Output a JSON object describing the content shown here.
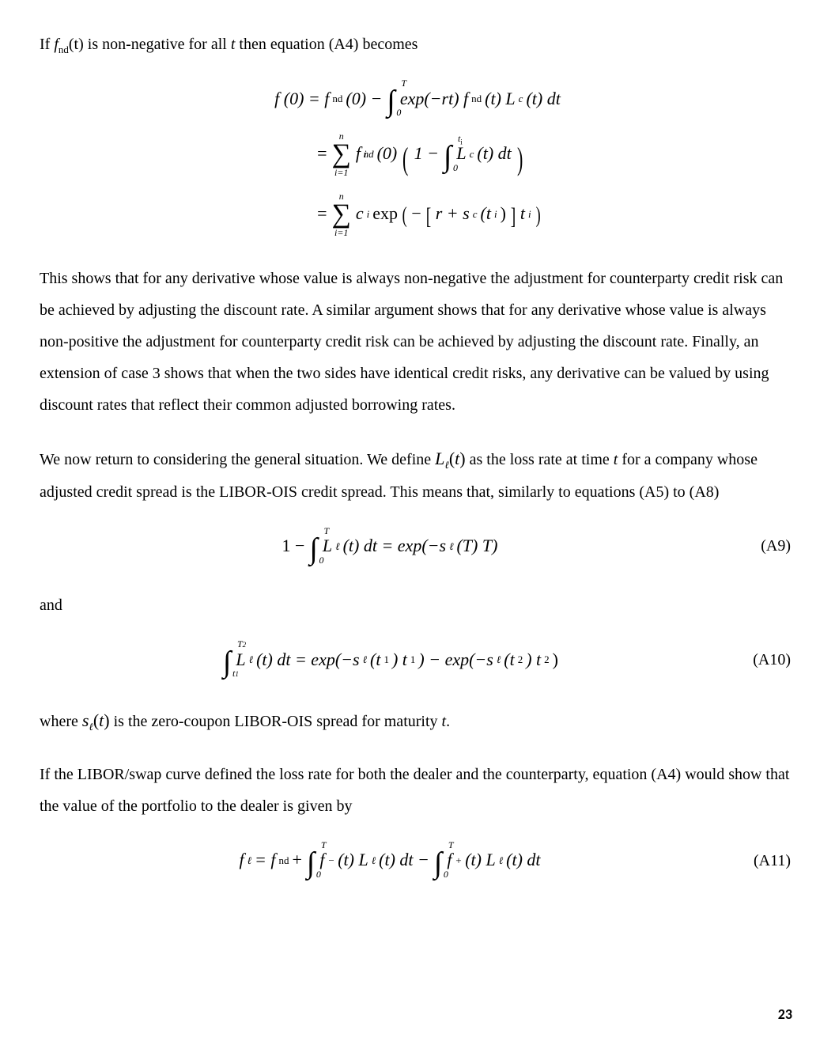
{
  "paragraphs": {
    "p1_pre": "If ",
    "p1_fnd": "f",
    "p1_fnd_sub": "nd",
    "p1_fnd_arg": "(t)",
    "p1_mid": " is non-negative for all ",
    "p1_t": "t",
    "p1_end": " then equation (A4) becomes",
    "p2": "This shows that for any derivative whose value is always non-negative the adjustment for counterparty credit risk can be achieved by adjusting the discount rate. A similar argument shows that for any derivative whose value is always non-positive the adjustment for counterparty credit risk can be achieved by adjusting the discount rate. Finally, an extension of case 3 shows that when the two sides have identical credit risks, any derivative can be valued by using discount rates that reflect their common adjusted borrowing rates.",
    "p3_a": "We now return to considering the general situation.  We define ",
    "p3_L": "L",
    "p3_L_sub": "ℓ",
    "p3_L_arg_open": "(",
    "p3_L_arg_t": "t",
    "p3_L_arg_close": ")",
    "p3_b": " as the loss rate at time ",
    "p3_t": "t",
    "p3_c": " for a company whose adjusted credit spread is the LIBOR-OIS credit spread. This means that, similarly to equations (A5) to (A8)",
    "p4": "and",
    "p5_a": "where ",
    "p5_s": "s",
    "p5_s_sub": "ℓ",
    "p5_s_arg_open": "(",
    "p5_s_arg_t": "t",
    "p5_s_arg_close": ")",
    "p5_b": " is the zero-coupon LIBOR-OIS spread for maturity ",
    "p5_t": "t",
    "p5_c": ".",
    "p6": "If the LIBOR/swap curve defined the loss rate for both the dealer and the counterparty, equation (A4) would show that the value of the portfolio to the dealer is given by"
  },
  "equations": {
    "block1": {
      "line1_lhs": "f (0) = f",
      "line1_nd": "nd",
      "line1_a": " (0) − ",
      "line1_int_up": "T",
      "line1_int_lo": "0",
      "line1_b": " exp(−rt) f",
      "line1_nd2": "nd",
      "line1_c": " (t) L",
      "line1_csub": "c",
      "line1_d": " (t) dt",
      "line2_eq": "= ",
      "line2_sum_top": "n",
      "line2_sum_bot": "i=1",
      "line2_a": " f",
      "line2_sup": " i",
      "line2_nd": "nd",
      "line2_b": " (0)",
      "line2_c": "1 − ",
      "line2_int_up": "t",
      "line2_int_upsub": "i",
      "line2_int_lo": "0",
      "line2_d": " L",
      "line2_csub": "c",
      "line2_e": " (t) dt",
      "line3_eq": "= ",
      "line3_sum_top": "n",
      "line3_sum_bot": "i=1",
      "line3_a": " c",
      "line3_isub": "i",
      "line3_b": " exp",
      "line3_c": "−",
      "line3_d": "r + s",
      "line3_csub": "c",
      "line3_e": " (t",
      "line3_isub2": "i",
      "line3_f": ")",
      "line3_g": "t",
      "line3_isub3": "i"
    },
    "a9": {
      "lhs": "1 − ",
      "int_up": "T",
      "int_lo": "0",
      "a": " L",
      "lsub": "ℓ",
      "b": " (t) dt = exp(−s",
      "lsub2": "ℓ",
      "c": " (T) T)",
      "label": "(A9)"
    },
    "a10": {
      "int_up": "T",
      "int_upsub": "2",
      "int_lo": "t",
      "int_losub": "1",
      "a": " L",
      "lsub": "ℓ",
      "b": " (t) dt = exp(−s",
      "lsub2": "ℓ",
      "c": " (t",
      "sub1": "1",
      "d": ") t",
      "sub1b": "1",
      "e": ") − exp(−s",
      "lsub3": "ℓ",
      "f": " (t",
      "sub2": "2",
      "g": ") t",
      "sub2b": "2",
      "h": ")",
      "label": "(A10)"
    },
    "a11": {
      "a": "f",
      "lsub": "ℓ",
      "b": " = f",
      "nd": "nd",
      "c": " + ",
      "int1_up": "T",
      "int1_lo": "0",
      "d": " f ",
      "minus": "−",
      "e": "(t) L",
      "lsub2": "ℓ",
      "f": " (t) dt − ",
      "int2_up": "T",
      "int2_lo": "0",
      "g": " f ",
      "plus": "+",
      "h": "(t) L",
      "lsub3": "ℓ",
      "i": " (t) dt",
      "label": "(A11)"
    }
  },
  "page_number": "23"
}
